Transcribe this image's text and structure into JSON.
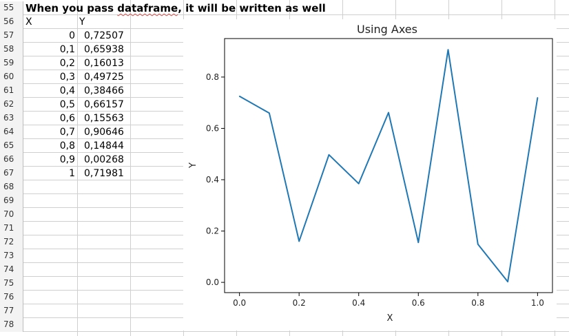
{
  "sheet": {
    "rows": [
      {
        "num": "55",
        "a": "",
        "b": ""
      },
      {
        "num": "56",
        "a": "X",
        "b": "Y"
      },
      {
        "num": "57",
        "a": "0",
        "b": "0,72507"
      },
      {
        "num": "58",
        "a": "0,1",
        "b": "0,65938"
      },
      {
        "num": "59",
        "a": "0,2",
        "b": "0,16013"
      },
      {
        "num": "60",
        "a": "0,3",
        "b": "0,49725"
      },
      {
        "num": "61",
        "a": "0,4",
        "b": "0,38466"
      },
      {
        "num": "62",
        "a": "0,5",
        "b": "0,66157"
      },
      {
        "num": "63",
        "a": "0,6",
        "b": "0,15563"
      },
      {
        "num": "64",
        "a": "0,7",
        "b": "0,90646"
      },
      {
        "num": "65",
        "a": "0,8",
        "b": "0,14844"
      },
      {
        "num": "66",
        "a": "0,9",
        "b": "0,00268"
      },
      {
        "num": "67",
        "a": "1",
        "b": "0,71981"
      },
      {
        "num": "68",
        "a": "",
        "b": ""
      },
      {
        "num": "69",
        "a": "",
        "b": ""
      },
      {
        "num": "70",
        "a": "",
        "b": ""
      },
      {
        "num": "71",
        "a": "",
        "b": ""
      },
      {
        "num": "72",
        "a": "",
        "b": ""
      },
      {
        "num": "73",
        "a": "",
        "b": ""
      },
      {
        "num": "74",
        "a": "",
        "b": ""
      },
      {
        "num": "75",
        "a": "",
        "b": ""
      },
      {
        "num": "76",
        "a": "",
        "b": ""
      },
      {
        "num": "77",
        "a": "",
        "b": ""
      },
      {
        "num": "78",
        "a": "",
        "b": ""
      }
    ],
    "heading_pre": "When you pass ",
    "heading_word": "dataframe",
    "heading_post": ", it will be written as well"
  },
  "chart_data": {
    "type": "line",
    "title": "Using Axes",
    "xlabel": "X",
    "ylabel": "Y",
    "x": [
      0,
      0.1,
      0.2,
      0.3,
      0.4,
      0.5,
      0.6,
      0.7,
      0.8,
      0.9,
      1.0
    ],
    "series": [
      {
        "values": [
          0.72507,
          0.65938,
          0.16013,
          0.49725,
          0.38466,
          0.66157,
          0.15563,
          0.90646,
          0.14844,
          0.00268,
          0.71981
        ]
      }
    ],
    "xticks": [
      "0.0",
      "0.2",
      "0.4",
      "0.6",
      "0.8",
      "1.0"
    ],
    "yticks": [
      "0.0",
      "0.2",
      "0.4",
      "0.6",
      "0.8"
    ],
    "xlim": [
      -0.05,
      1.05
    ],
    "ylim": [
      -0.04,
      0.95
    ],
    "line_color": "#1f77b4",
    "grid": false
  }
}
